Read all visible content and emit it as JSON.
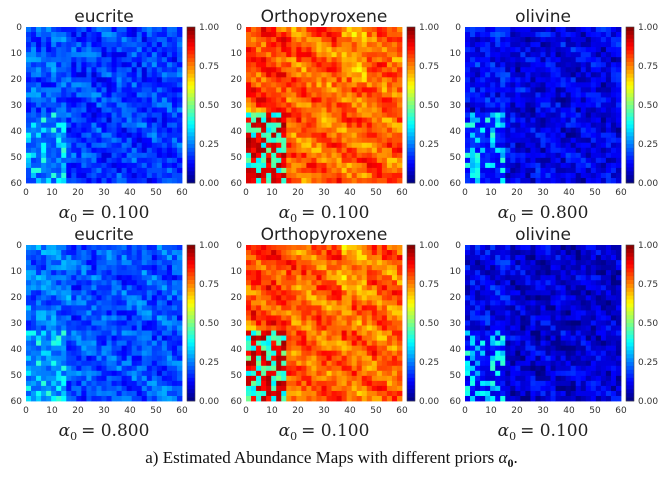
{
  "chart_data": [
    {
      "type": "heatmap",
      "title": "eucrite",
      "alpha_label": "α",
      "alpha_sub": "0",
      "alpha_value": "= 0.100",
      "xticks": [
        "0",
        "10",
        "20",
        "30",
        "40",
        "50",
        "60"
      ],
      "yticks": [
        "0",
        "10",
        "20",
        "30",
        "40",
        "50",
        "60"
      ],
      "colorbar_ticks": [
        "1.00",
        "0.75",
        "0.50",
        "0.25",
        "0.00"
      ],
      "colorbar_range": [
        0,
        1
      ],
      "colormap": "jet",
      "mean_abundance": 0.18
    },
    {
      "type": "heatmap",
      "title": "Orthopyroxene",
      "alpha_label": "α",
      "alpha_sub": "0",
      "alpha_value": "= 0.100",
      "xticks": [
        "0",
        "10",
        "20",
        "30",
        "40",
        "50",
        "60"
      ],
      "yticks": [
        "0",
        "10",
        "20",
        "30",
        "40",
        "50",
        "60"
      ],
      "colorbar_ticks": [
        "1.00",
        "0.75",
        "0.50",
        "0.25",
        "0.00"
      ],
      "colorbar_range": [
        0,
        1
      ],
      "colormap": "jet",
      "mean_abundance": 0.78
    },
    {
      "type": "heatmap",
      "title": "olivine",
      "alpha_label": "α",
      "alpha_sub": "0",
      "alpha_value": "= 0.800",
      "xticks": [
        "0",
        "10",
        "20",
        "30",
        "40",
        "50",
        "60"
      ],
      "yticks": [
        "0",
        "10",
        "20",
        "30",
        "40",
        "50",
        "60"
      ],
      "colorbar_ticks": [
        "1.00",
        "0.75",
        "0.50",
        "0.25",
        "0.00"
      ],
      "colorbar_range": [
        0,
        1
      ],
      "colormap": "jet",
      "mean_abundance": 0.1
    },
    {
      "type": "heatmap",
      "title": "eucrite",
      "alpha_label": "α",
      "alpha_sub": "0",
      "alpha_value": "= 0.800",
      "xticks": [
        "0",
        "10",
        "20",
        "30",
        "40",
        "50",
        "60"
      ],
      "yticks": [
        "0",
        "10",
        "20",
        "30",
        "40",
        "50",
        "60"
      ],
      "colorbar_ticks": [
        "1.00",
        "0.75",
        "0.50",
        "0.25",
        "0.00"
      ],
      "colorbar_range": [
        0,
        1
      ],
      "colormap": "jet",
      "mean_abundance": 0.2
    },
    {
      "type": "heatmap",
      "title": "Orthopyroxene",
      "alpha_label": "α",
      "alpha_sub": "0",
      "alpha_value": "= 0.100",
      "xticks": [
        "0",
        "10",
        "20",
        "30",
        "40",
        "50",
        "60"
      ],
      "yticks": [
        "0",
        "10",
        "20",
        "30",
        "40",
        "50",
        "60"
      ],
      "colorbar_ticks": [
        "1.00",
        "0.75",
        "0.50",
        "0.25",
        "0.00"
      ],
      "colorbar_range": [
        0,
        1
      ],
      "colormap": "jet",
      "mean_abundance": 0.78
    },
    {
      "type": "heatmap",
      "title": "olivine",
      "alpha_label": "α",
      "alpha_sub": "0",
      "alpha_value": "= 0.100",
      "xticks": [
        "0",
        "10",
        "20",
        "30",
        "40",
        "50",
        "60"
      ],
      "yticks": [
        "0",
        "10",
        "20",
        "30",
        "40",
        "50",
        "60"
      ],
      "colorbar_ticks": [
        "1.00",
        "0.75",
        "0.50",
        "0.25",
        "0.00"
      ],
      "colorbar_range": [
        0,
        1
      ],
      "colormap": "jet",
      "mean_abundance": 0.08
    }
  ],
  "caption": {
    "prefix": "a) Estimated Abundance Maps with different priors ",
    "alpha": "α",
    "sub": "0",
    "suffix": "."
  }
}
